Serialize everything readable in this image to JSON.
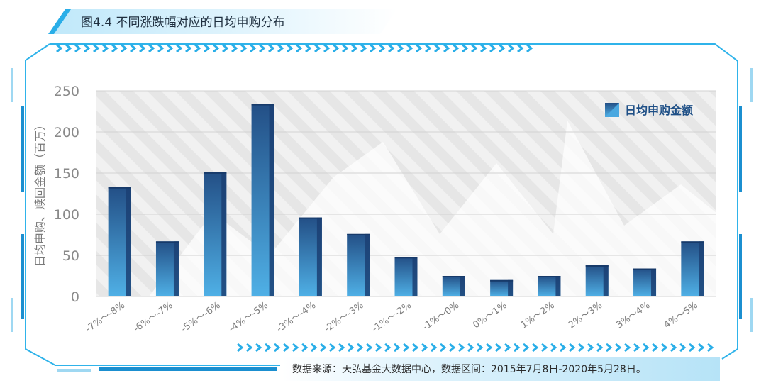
{
  "header": {
    "title": "图4.4 不同涨跌幅对应的日均申购分布"
  },
  "footer": {
    "source": "数据来源：天弘基金大数据中心，数据区间：2015年7月8日-2020年5月28日。"
  },
  "colors": {
    "accent": "#29aee8",
    "bar_light": "#4aa8e0",
    "bar_dark": "#1d4f8c",
    "frame": "#2fb3ea"
  },
  "chart_data": {
    "type": "bar",
    "categories": [
      "-7%～-8%",
      "-6%～-7%",
      "-5%～-6%",
      "-4%～-5%",
      "-3%～-4%",
      "-2%～-3%",
      "-1%～-2%",
      "-1%～0%",
      "0%～1%",
      "1%～2%",
      "2%～3%",
      "3%～4%",
      "4%～5%"
    ],
    "series": [
      {
        "name": "日均申购金额",
        "values": [
          133,
          67,
          151,
          234,
          96,
          76,
          48,
          25,
          20,
          25,
          38,
          34,
          67
        ]
      }
    ],
    "ylabel": "日均申购、赎回金额（百万）",
    "ylim": [
      0,
      250
    ],
    "yticks": [
      0,
      50,
      100,
      150,
      200,
      250
    ],
    "grid": true,
    "legend_position": "top-right"
  }
}
